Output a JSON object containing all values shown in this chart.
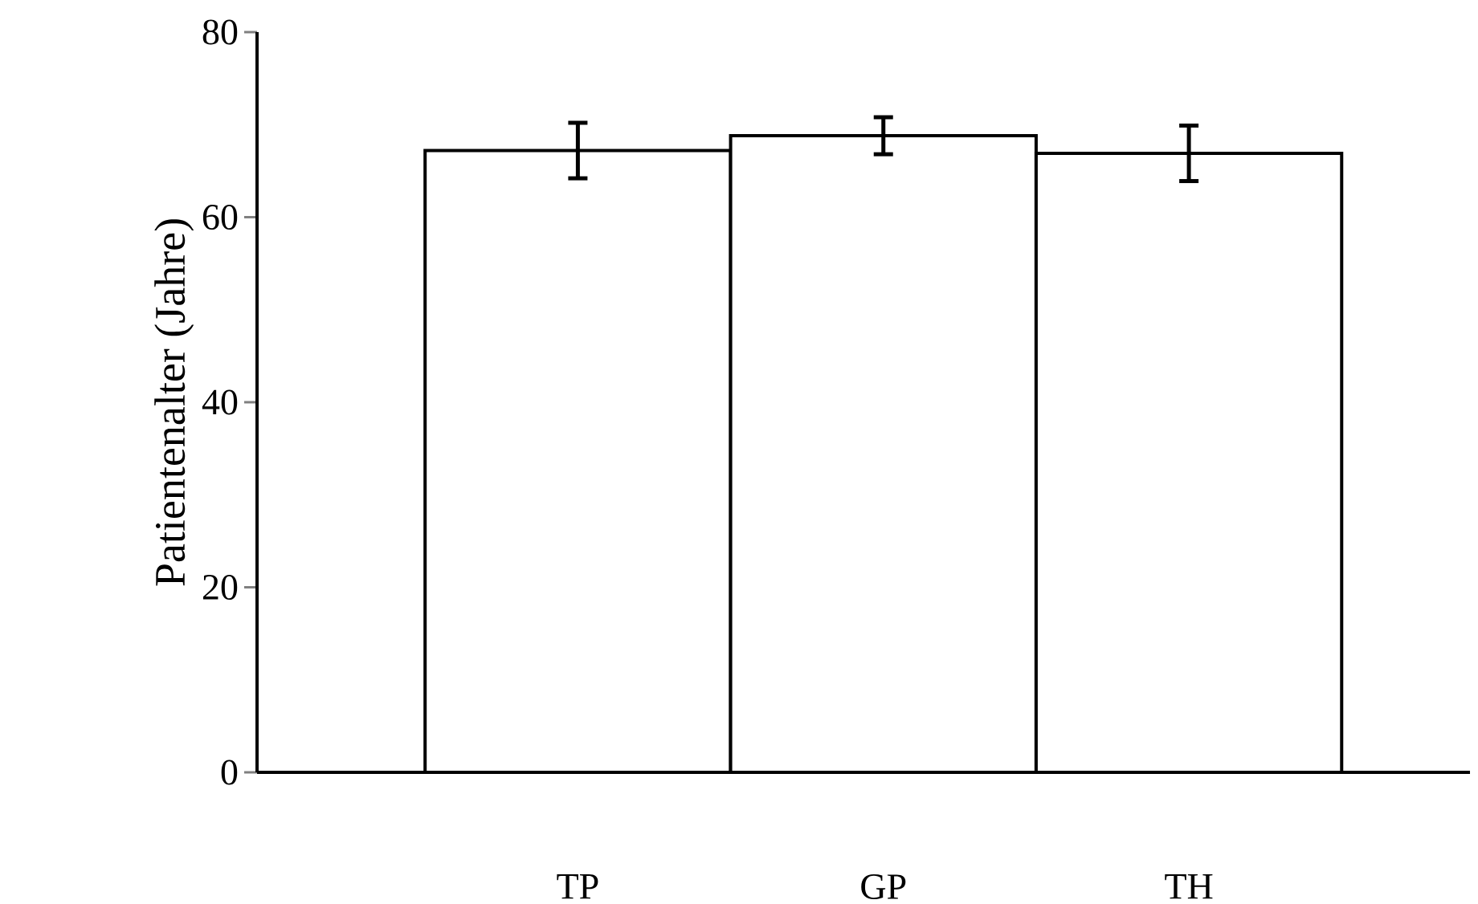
{
  "chart_data": {
    "type": "bar",
    "ylabel": "Patientenalter (Jahre)",
    "categories": [
      "TP",
      "GP",
      "TH"
    ],
    "values": [
      67.2,
      68.8,
      66.9
    ],
    "errors": [
      3,
      2,
      3
    ],
    "color": "#ffffff",
    "ylim": [
      0,
      80
    ],
    "yticks": [
      0,
      20,
      40,
      60,
      80
    ],
    "grid": false
  }
}
